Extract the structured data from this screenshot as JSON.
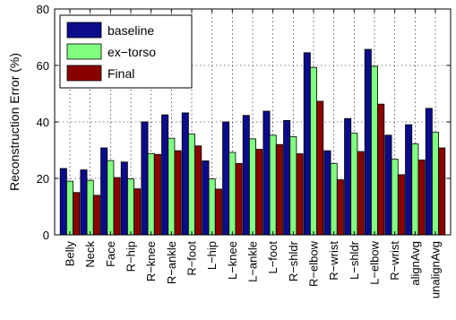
{
  "chart_data": {
    "type": "bar",
    "ylabel": "Reconstruction Error (%)",
    "ylim": [
      0,
      80
    ],
    "yticks": [
      "0",
      "20",
      "40",
      "60",
      "80"
    ],
    "grid": true,
    "legend_position": "top-left",
    "categories": [
      "Belly",
      "Neck",
      "Face",
      "R−hip",
      "R−knee",
      "R−ankle",
      "R−foot",
      "L−hip",
      "L−knee",
      "L−ankle",
      "L−foot",
      "R−shldr",
      "R−elbow",
      "R−wrist",
      "L−shldr",
      "L−elbow",
      "R−wrist",
      "alignAvg",
      "unalignAvg"
    ],
    "series": [
      {
        "name": "baseline",
        "color": "#0b0b8c",
        "values": [
          23.5,
          23,
          30.8,
          25.8,
          40,
          42.5,
          43.2,
          26.2,
          40,
          42.3,
          43.8,
          40.5,
          64.5,
          29.8,
          41.2,
          65.7,
          35.3,
          39,
          44.8
        ]
      },
      {
        "name": "ex−torso",
        "color": "#80ff80",
        "values": [
          19,
          19.3,
          26.3,
          19.8,
          28.8,
          34.2,
          35.7,
          19.8,
          29.2,
          34,
          35.3,
          34.8,
          59.3,
          25.3,
          36,
          59.7,
          26.8,
          32.2,
          36.3
        ]
      },
      {
        "name": "Final",
        "color": "#8b0000",
        "values": [
          15,
          14,
          20.3,
          16.3,
          28.5,
          29.8,
          31.5,
          16.2,
          25.3,
          30.3,
          32,
          28.7,
          47.3,
          19.5,
          29.5,
          46.3,
          21.3,
          26.5,
          30.8
        ]
      }
    ]
  }
}
